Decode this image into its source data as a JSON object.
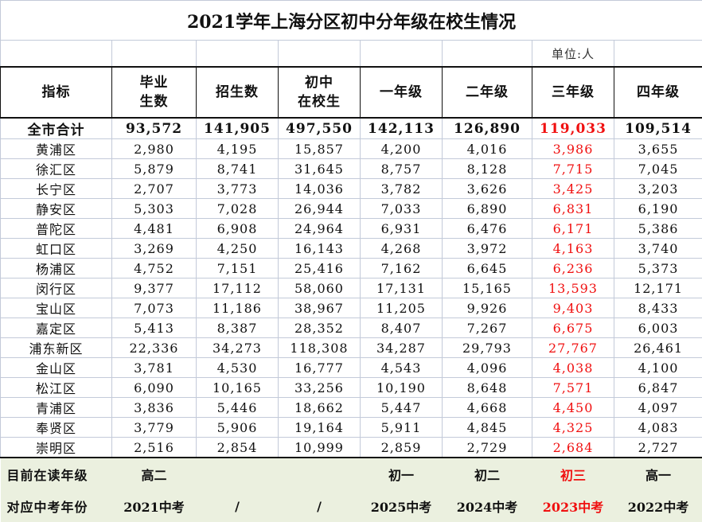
{
  "title": "2021学年上海分区初中分年级在校生情况",
  "unit": "单位:人",
  "headers": [
    "指标",
    "毕业\n生数",
    "招生数",
    "初中\n在校生",
    "一年级",
    "二年级",
    "三年级",
    "四年级"
  ],
  "total": {
    "name": "全市合计",
    "values": [
      "93,572",
      "141,905",
      "497,550",
      "142,113",
      "126,890",
      "119,033",
      "109,514"
    ]
  },
  "highlight_color": "#f01010",
  "highlight_column": "三年级",
  "rows": [
    {
      "name": "黄浦区",
      "values": [
        "2,980",
        "4,195",
        "15,857",
        "4,200",
        "4,016",
        "3,986",
        "3,655"
      ]
    },
    {
      "name": "徐汇区",
      "values": [
        "5,879",
        "8,741",
        "31,645",
        "8,757",
        "8,128",
        "7,715",
        "7,045"
      ]
    },
    {
      "name": "长宁区",
      "values": [
        "2,707",
        "3,773",
        "14,036",
        "3,782",
        "3,626",
        "3,425",
        "3,203"
      ]
    },
    {
      "name": "静安区",
      "values": [
        "5,303",
        "7,028",
        "26,944",
        "7,033",
        "6,890",
        "6,831",
        "6,190"
      ]
    },
    {
      "name": "普陀区",
      "values": [
        "4,481",
        "6,908",
        "24,964",
        "6,931",
        "6,476",
        "6,171",
        "5,386"
      ]
    },
    {
      "name": "虹口区",
      "values": [
        "3,269",
        "4,250",
        "16,143",
        "4,268",
        "3,972",
        "4,163",
        "3,740"
      ]
    },
    {
      "name": "杨浦区",
      "values": [
        "4,752",
        "7,151",
        "25,416",
        "7,162",
        "6,645",
        "6,236",
        "5,373"
      ]
    },
    {
      "name": "闵行区",
      "values": [
        "9,377",
        "17,112",
        "58,060",
        "17,131",
        "15,165",
        "13,593",
        "12,171"
      ]
    },
    {
      "name": "宝山区",
      "values": [
        "7,073",
        "11,186",
        "38,967",
        "11,205",
        "9,926",
        "9,403",
        "8,433"
      ]
    },
    {
      "name": "嘉定区",
      "values": [
        "5,413",
        "8,387",
        "28,352",
        "8,407",
        "7,267",
        "6,675",
        "6,003"
      ]
    },
    {
      "name": "浦东新区",
      "values": [
        "22,336",
        "34,273",
        "118,308",
        "34,287",
        "29,793",
        "27,767",
        "26,461"
      ]
    },
    {
      "name": "金山区",
      "values": [
        "3,781",
        "4,530",
        "16,777",
        "4,543",
        "4,096",
        "4,038",
        "4,100"
      ]
    },
    {
      "name": "松江区",
      "values": [
        "6,090",
        "10,165",
        "33,256",
        "10,190",
        "8,648",
        "7,571",
        "6,847"
      ]
    },
    {
      "name": "青浦区",
      "values": [
        "3,836",
        "5,446",
        "18,662",
        "5,447",
        "4,668",
        "4,450",
        "4,097"
      ]
    },
    {
      "name": "奉贤区",
      "values": [
        "3,779",
        "5,906",
        "19,164",
        "5,911",
        "4,845",
        "4,325",
        "4,083"
      ]
    },
    {
      "name": "崇明区",
      "values": [
        "2,516",
        "2,854",
        "10,999",
        "2,859",
        "2,729",
        "2,684",
        "2,727"
      ]
    }
  ],
  "footer": [
    {
      "label": "目前在读年级",
      "values": [
        "高二",
        "",
        "",
        "初一",
        "初二",
        "初三",
        "高一"
      ]
    },
    {
      "label": "对应中考年份",
      "values": [
        "2021中考",
        "/",
        "/",
        "2025中考",
        "2024中考",
        "2023中考",
        "2022中考"
      ]
    }
  ]
}
